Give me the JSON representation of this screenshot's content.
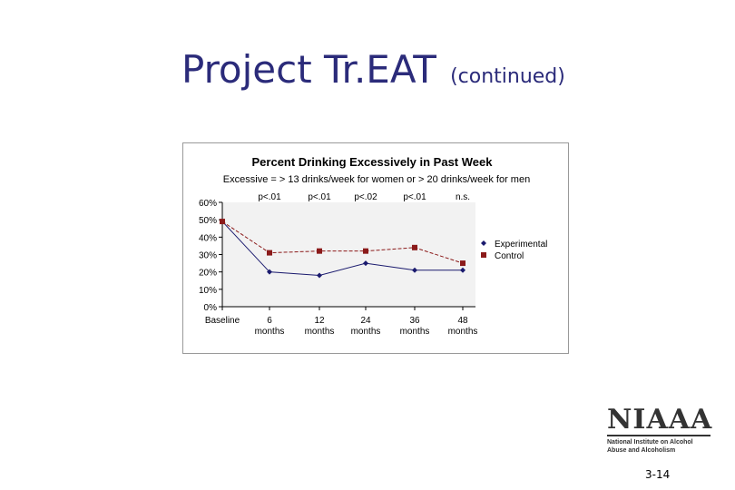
{
  "slide": {
    "title": "Project Tr.EAT",
    "subtitle": "(continued)",
    "number": "3-14"
  },
  "logo": {
    "name": "NIAAA",
    "line1": "National Institute on Alcohol",
    "line2": "Abuse and Alcoholism"
  },
  "chart_data": {
    "type": "line",
    "title": "Percent Drinking Excessively in Past Week",
    "subtitle": "Excessive = > 13 drinks/week for women or > 20 drinks/week for men",
    "categories": [
      "Baseline",
      "6 months",
      "12 months",
      "24 months",
      "36 months",
      "48 months"
    ],
    "category_lines": [
      [
        "Baseline"
      ],
      [
        "6",
        "months"
      ],
      [
        "12",
        "months"
      ],
      [
        "24",
        "months"
      ],
      [
        "36",
        "months"
      ],
      [
        "48",
        "months"
      ]
    ],
    "ylim": [
      0,
      60
    ],
    "yticks": [
      0,
      10,
      20,
      30,
      40,
      50,
      60
    ],
    "ytick_labels": [
      "0%",
      "10%",
      "20%",
      "30%",
      "40%",
      "50%",
      "60%"
    ],
    "annotations": [
      "p<.01",
      "p<.01",
      "p<.02",
      "p<.01",
      "n.s."
    ],
    "series": [
      {
        "name": "Experimental",
        "values": [
          49,
          20,
          18,
          25,
          21,
          21
        ],
        "color": "#1a1a6e",
        "marker": "diamond",
        "dash": "solid"
      },
      {
        "name": "Control",
        "values": [
          49,
          31,
          32,
          32,
          34,
          25
        ],
        "color": "#8b1a1a",
        "marker": "square",
        "dash": "dashed"
      }
    ],
    "legend": "right",
    "grid": false,
    "plot_background": "#f2f2f2"
  }
}
